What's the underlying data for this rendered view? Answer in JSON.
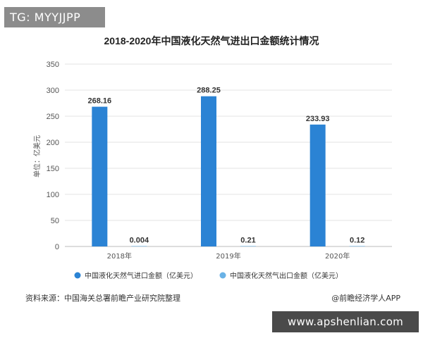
{
  "watermark_badge": "TG: MYYJJPP",
  "site_watermark": "www.apshenlian.com",
  "source_note": "资料来源：中国海关总署前瞻产业研究院整理",
  "credit": "@前瞻经济学人APP",
  "colors": {
    "import": "#2b83d4",
    "export": "#6ab2e6",
    "grid": "#e3e3e3",
    "axis_text": "#555555",
    "label_text": "#333333"
  },
  "chart_data": {
    "type": "bar",
    "title": "2018-2020年中国液化天然气进出口金额统计情况",
    "ylabel": "单位：亿美元",
    "xlabel": "",
    "categories": [
      "2018年",
      "2019年",
      "2020年"
    ],
    "ylim": [
      0,
      350
    ],
    "yticks": [
      0,
      50,
      100,
      150,
      200,
      250,
      300,
      350
    ],
    "grid": true,
    "legend_position": "bottom",
    "series": [
      {
        "name": "中国液化天然气进口金额（亿美元）",
        "values": [
          268.16,
          288.25,
          233.93
        ],
        "labels": [
          "268.16",
          "288.25",
          "233.93"
        ]
      },
      {
        "name": "中国液化天然气出口金额（亿美元）",
        "values": [
          0.004,
          0.21,
          0.12
        ],
        "labels": [
          "0.004",
          "0.21",
          "0.12"
        ]
      }
    ]
  }
}
